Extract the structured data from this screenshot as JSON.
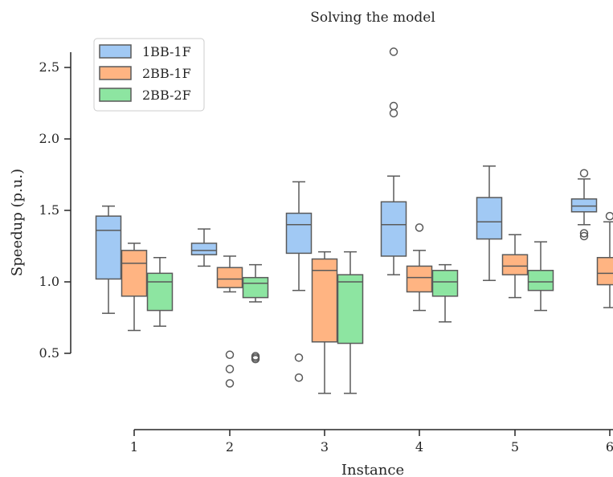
{
  "chart_data": {
    "type": "box",
    "title": "Solving the model",
    "xlabel": "Instance",
    "ylabel": "Speedup (p.u.)",
    "categories": [
      "1",
      "2",
      "3",
      "4",
      "5",
      "6"
    ],
    "y_ticks": [
      "0.5",
      "1.0",
      "1.5",
      "2.0",
      "2.5"
    ],
    "ylim": [
      0.1,
      2.75
    ],
    "legend_position": "upper-left",
    "grid": false,
    "series": [
      {
        "name": "1BB-1F",
        "color": "#a1c9f4",
        "boxes": [
          {
            "min": 0.78,
            "q1": 1.02,
            "median": 1.36,
            "q3": 1.46,
            "max": 1.53,
            "outliers": []
          },
          {
            "min": 1.11,
            "q1": 1.19,
            "median": 1.22,
            "q3": 1.27,
            "max": 1.37,
            "outliers": []
          },
          {
            "min": 0.94,
            "q1": 1.2,
            "median": 1.4,
            "q3": 1.48,
            "max": 1.7,
            "outliers": [
              0.47,
              0.33
            ]
          },
          {
            "min": 1.05,
            "q1": 1.18,
            "median": 1.4,
            "q3": 1.56,
            "max": 1.74,
            "outliers": [
              2.61,
              2.23,
              2.18
            ]
          },
          {
            "min": 1.01,
            "q1": 1.3,
            "median": 1.42,
            "q3": 1.59,
            "max": 1.81,
            "outliers": []
          },
          {
            "min": 1.4,
            "q1": 1.49,
            "median": 1.53,
            "q3": 1.58,
            "max": 1.72,
            "outliers": [
              1.76,
              1.34,
              1.32
            ]
          }
        ]
      },
      {
        "name": "2BB-1F",
        "color": "#ffb482",
        "boxes": [
          {
            "min": 0.66,
            "q1": 0.9,
            "median": 1.13,
            "q3": 1.22,
            "max": 1.27,
            "outliers": []
          },
          {
            "min": 0.93,
            "q1": 0.96,
            "median": 1.02,
            "q3": 1.1,
            "max": 1.18,
            "outliers": [
              0.49,
              0.39,
              0.29
            ]
          },
          {
            "min": 0.22,
            "q1": 0.58,
            "median": 1.08,
            "q3": 1.16,
            "max": 1.21,
            "outliers": []
          },
          {
            "min": 0.8,
            "q1": 0.93,
            "median": 1.03,
            "q3": 1.11,
            "max": 1.22,
            "outliers": [
              1.38
            ]
          },
          {
            "min": 0.89,
            "q1": 1.05,
            "median": 1.11,
            "q3": 1.19,
            "max": 1.33,
            "outliers": []
          },
          {
            "min": 0.82,
            "q1": 0.98,
            "median": 1.06,
            "q3": 1.17,
            "max": 1.42,
            "outliers": [
              1.46
            ]
          }
        ]
      },
      {
        "name": "2BB-2F",
        "color": "#8de5a1",
        "boxes": [
          {
            "min": 0.69,
            "q1": 0.8,
            "median": 1.0,
            "q3": 1.06,
            "max": 1.17,
            "outliers": []
          },
          {
            "min": 0.86,
            "q1": 0.89,
            "median": 0.99,
            "q3": 1.03,
            "max": 1.12,
            "outliers": [
              0.48,
              0.47,
              0.46
            ]
          },
          {
            "min": 0.22,
            "q1": 0.57,
            "median": 1.0,
            "q3": 1.05,
            "max": 1.21,
            "outliers": []
          },
          {
            "min": 0.72,
            "q1": 0.9,
            "median": 1.0,
            "q3": 1.08,
            "max": 1.12,
            "outliers": []
          },
          {
            "min": 0.8,
            "q1": 0.94,
            "median": 1.0,
            "q3": 1.08,
            "max": 1.28,
            "outliers": []
          },
          {
            "min": 0.8,
            "q1": 0.95,
            "median": 1.02,
            "q3": 1.12,
            "max": 1.3,
            "outliers": []
          }
        ]
      }
    ]
  }
}
